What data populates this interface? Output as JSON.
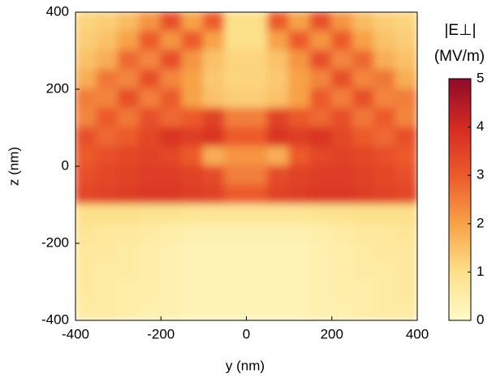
{
  "chart_data": {
    "type": "heatmap",
    "title": "|E⊥|",
    "colorbar_label": "(MV/m)",
    "xlabel": "y (nm)",
    "ylabel": "z (nm)",
    "x": [
      -375,
      -325,
      -275,
      -225,
      -175,
      -125,
      -75,
      -25,
      25,
      75,
      125,
      175,
      225,
      275,
      325,
      375
    ],
    "y": [
      375,
      325,
      275,
      225,
      175,
      125,
      75,
      25,
      -25,
      -75,
      -125,
      -175,
      -225,
      -275,
      -325,
      -375
    ],
    "z": [
      [
        1.2,
        1.3,
        1.6,
        2.2,
        3.2,
        2.0,
        3.0,
        1.0,
        1.0,
        3.0,
        2.0,
        3.2,
        2.2,
        1.6,
        1.3,
        1.2
      ],
      [
        1.3,
        1.5,
        2.0,
        3.0,
        2.2,
        3.0,
        2.0,
        1.0,
        1.0,
        2.0,
        3.0,
        2.2,
        3.0,
        2.0,
        1.5,
        1.3
      ],
      [
        1.5,
        1.8,
        2.8,
        2.4,
        3.2,
        2.2,
        1.5,
        1.2,
        1.2,
        1.5,
        2.2,
        3.2,
        2.4,
        2.8,
        1.8,
        1.5
      ],
      [
        1.8,
        2.6,
        2.4,
        3.2,
        2.4,
        2.0,
        1.4,
        1.2,
        1.2,
        1.4,
        2.0,
        2.4,
        3.2,
        2.4,
        2.6,
        1.8
      ],
      [
        2.5,
        2.4,
        3.2,
        2.5,
        3.0,
        2.0,
        1.5,
        1.3,
        1.3,
        1.5,
        2.0,
        3.0,
        2.5,
        3.2,
        2.4,
        2.5
      ],
      [
        2.4,
        3.0,
        2.6,
        3.2,
        2.8,
        3.0,
        3.5,
        2.5,
        2.5,
        3.5,
        3.0,
        2.8,
        3.2,
        2.6,
        3.0,
        2.4
      ],
      [
        3.2,
        2.8,
        3.0,
        3.4,
        3.8,
        3.6,
        3.8,
        3.0,
        3.0,
        3.8,
        3.6,
        3.8,
        3.4,
        3.0,
        2.8,
        3.2
      ],
      [
        3.0,
        3.2,
        3.4,
        3.5,
        3.4,
        3.0,
        1.8,
        2.2,
        2.2,
        1.8,
        3.0,
        3.4,
        3.5,
        3.4,
        3.2,
        3.0
      ],
      [
        3.2,
        3.4,
        3.5,
        3.6,
        3.6,
        3.5,
        3.3,
        2.5,
        2.5,
        3.3,
        3.5,
        3.6,
        3.6,
        3.5,
        3.4,
        3.2
      ],
      [
        3.4,
        3.5,
        3.6,
        3.7,
        3.7,
        3.6,
        3.5,
        3.0,
        3.0,
        3.5,
        3.6,
        3.7,
        3.7,
        3.6,
        3.5,
        3.4
      ],
      [
        1.0,
        1.0,
        1.0,
        0.9,
        0.9,
        0.8,
        0.8,
        0.8,
        0.8,
        0.8,
        0.8,
        0.9,
        0.9,
        1.0,
        1.0,
        1.0
      ],
      [
        0.8,
        0.7,
        0.7,
        0.6,
        0.5,
        0.4,
        0.4,
        0.4,
        0.4,
        0.4,
        0.4,
        0.5,
        0.6,
        0.7,
        0.7,
        0.8
      ],
      [
        0.7,
        0.7,
        0.6,
        0.5,
        0.4,
        0.3,
        0.3,
        0.3,
        0.3,
        0.3,
        0.3,
        0.4,
        0.5,
        0.6,
        0.7,
        0.7
      ],
      [
        0.7,
        0.6,
        0.6,
        0.5,
        0.4,
        0.3,
        0.3,
        0.3,
        0.3,
        0.3,
        0.3,
        0.4,
        0.5,
        0.6,
        0.6,
        0.7
      ],
      [
        0.7,
        0.6,
        0.5,
        0.5,
        0.4,
        0.3,
        0.3,
        0.3,
        0.3,
        0.3,
        0.3,
        0.4,
        0.5,
        0.5,
        0.6,
        0.7
      ],
      [
        0.6,
        0.6,
        0.5,
        0.4,
        0.4,
        0.3,
        0.3,
        0.3,
        0.3,
        0.3,
        0.3,
        0.4,
        0.4,
        0.5,
        0.6,
        0.6
      ]
    ],
    "xlim": [
      -400,
      400
    ],
    "ylim": [
      -400,
      400
    ],
    "xticks": [
      -400,
      -200,
      0,
      200,
      400
    ],
    "yticks": [
      -400,
      -200,
      0,
      200,
      400
    ],
    "clim": [
      0,
      5
    ],
    "cticks": [
      0,
      1,
      2,
      3,
      4,
      5
    ],
    "colorscale": [
      "#fffbc8",
      "#fde08a",
      "#f7a247",
      "#ec5a2c",
      "#d42a22",
      "#8e0a2a"
    ]
  }
}
